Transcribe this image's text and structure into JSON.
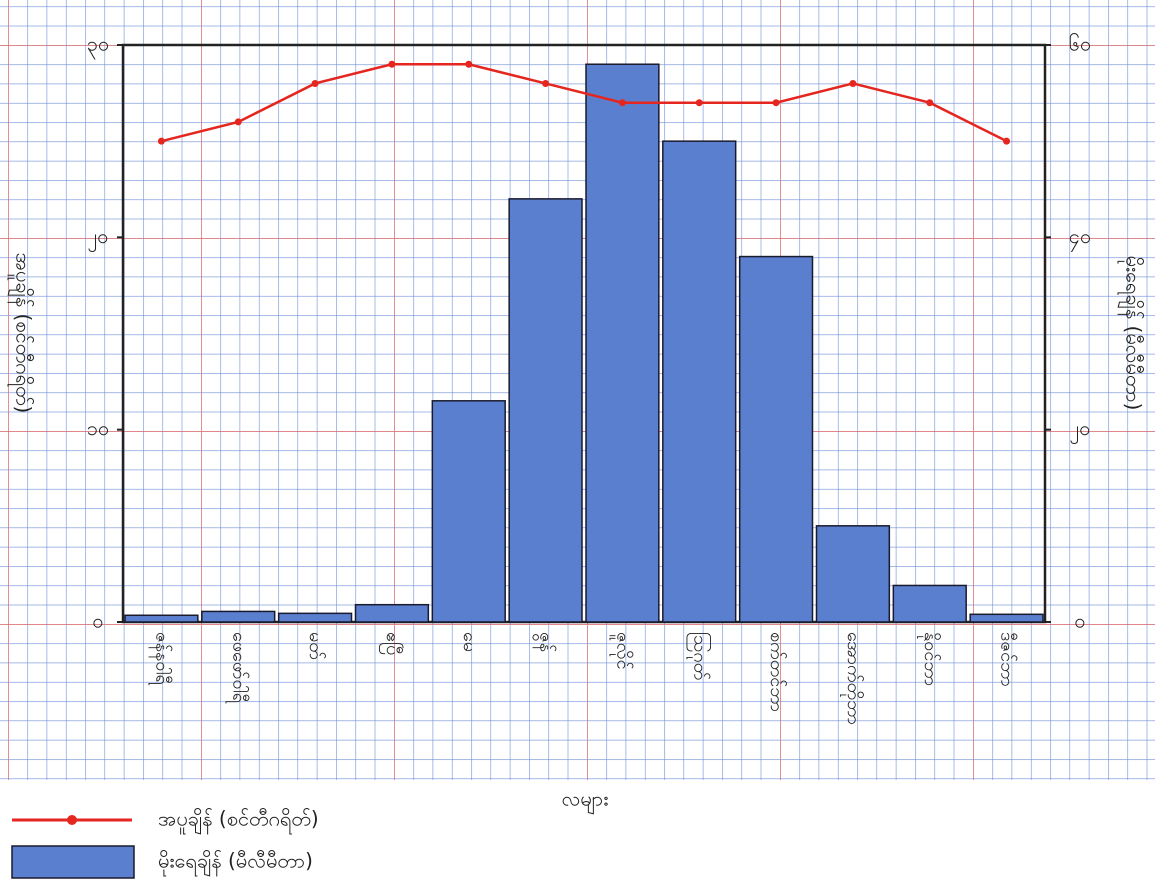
{
  "chart_data": {
    "type": "combo",
    "ylabel": "အပူချိန် (စင်တီဂရိတ်)",
    "y2label": "မိုးရေချိန် (မီလီမီတာ)",
    "xlabel": "လများ",
    "categories": [
      "ဇန်နဝါရီ",
      "ဖေဖော်ဝါရီ",
      "မတ်",
      "ဧပြီ",
      "မေ",
      "ဇွန်",
      "ဇူလိုင်",
      "ဩဂုတ်",
      "စက်တင်ဘာ",
      "အောက်တိုဘာ",
      "နိုဝင်ဘာ",
      "ဒီဇင်ဘာ"
    ],
    "series": [
      {
        "name": "အပူချိန် (စင်တီဂရိတ်)",
        "type": "line",
        "color": "#e5261f",
        "values": [
          25,
          26,
          28,
          29,
          29,
          28,
          27,
          27,
          27,
          28,
          27,
          25
        ]
      },
      {
        "name": "မိုးရေချိန် (မီလီမီတာ)",
        "type": "bar",
        "axis": "y2",
        "color": "#5b7fcf",
        "values": [
          0.7,
          1.1,
          0.9,
          1.8,
          23,
          44,
          58,
          50,
          38,
          10,
          3.8,
          0.8
        ]
      }
    ],
    "ylim": [
      0,
      30
    ],
    "yticks": [
      {
        "value": 0,
        "label": "၀"
      },
      {
        "value": 10,
        "label": "၁၀"
      },
      {
        "value": 20,
        "label": "၂၀"
      },
      {
        "value": 30,
        "label": "၃၀"
      }
    ],
    "y2lim": [
      0,
      60
    ],
    "y2ticks": [
      {
        "value": 0,
        "label": "၀"
      },
      {
        "value": 20,
        "label": "၂၀"
      },
      {
        "value": 40,
        "label": "၄၀"
      },
      {
        "value": 60,
        "label": "၆၀"
      }
    ],
    "legend": "bottom-left"
  }
}
